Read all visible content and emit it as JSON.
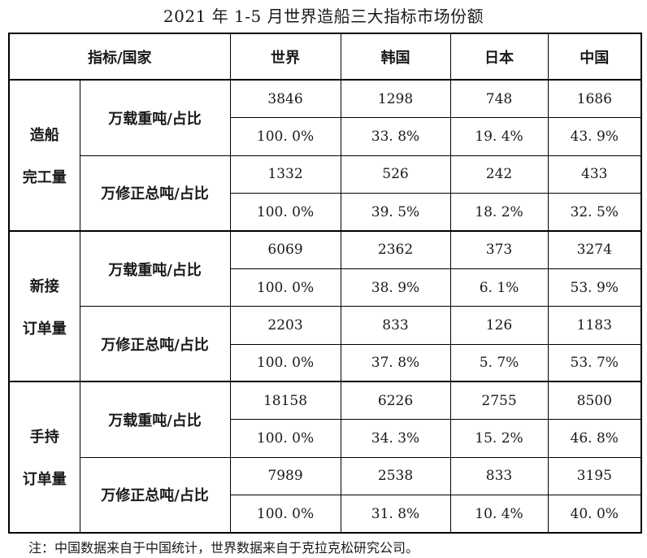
{
  "title": "2021 年 1-5 月世界造船三大指标市场份额",
  "note": "注：中国数据来自于中国统计，世界数据来自于克拉克松研究公司。",
  "table": {
    "header": {
      "indicator_country": "指标/国家",
      "columns": [
        "世界",
        "韩国",
        "日本",
        "中国"
      ]
    },
    "groups": [
      {
        "label_lines": [
          "造船",
          "完工量"
        ],
        "metrics": [
          {
            "label": "万载重吨/占比",
            "values": [
              "3846",
              "1298",
              "748",
              "1686"
            ],
            "shares": [
              "100. 0%",
              "33. 8%",
              "19. 4%",
              "43. 9%"
            ]
          },
          {
            "label": "万修正总吨/占比",
            "values": [
              "1332",
              "526",
              "242",
              "433"
            ],
            "shares": [
              "100. 0%",
              "39. 5%",
              "18. 2%",
              "32. 5%"
            ]
          }
        ]
      },
      {
        "label_lines": [
          "新接",
          "订单量"
        ],
        "metrics": [
          {
            "label": "万载重吨/占比",
            "values": [
              "6069",
              "2362",
              "373",
              "3274"
            ],
            "shares": [
              "100. 0%",
              "38. 9%",
              "6. 1%",
              "53. 9%"
            ]
          },
          {
            "label": "万修正总吨/占比",
            "values": [
              "2203",
              "833",
              "126",
              "1183"
            ],
            "shares": [
              "100. 0%",
              "37. 8%",
              "5. 7%",
              "53. 7%"
            ]
          }
        ]
      },
      {
        "label_lines": [
          "手持",
          "订单量"
        ],
        "metrics": [
          {
            "label": "万载重吨/占比",
            "values": [
              "18158",
              "6226",
              "2755",
              "8500"
            ],
            "shares": [
              "100. 0%",
              "34. 3%",
              "15. 2%",
              "46. 8%"
            ]
          },
          {
            "label": "万修正总吨/占比",
            "values": [
              "7989",
              "2538",
              "833",
              "3195"
            ],
            "shares": [
              "100. 0%",
              "31. 8%",
              "10. 4%",
              "40. 0%"
            ]
          }
        ]
      }
    ]
  }
}
